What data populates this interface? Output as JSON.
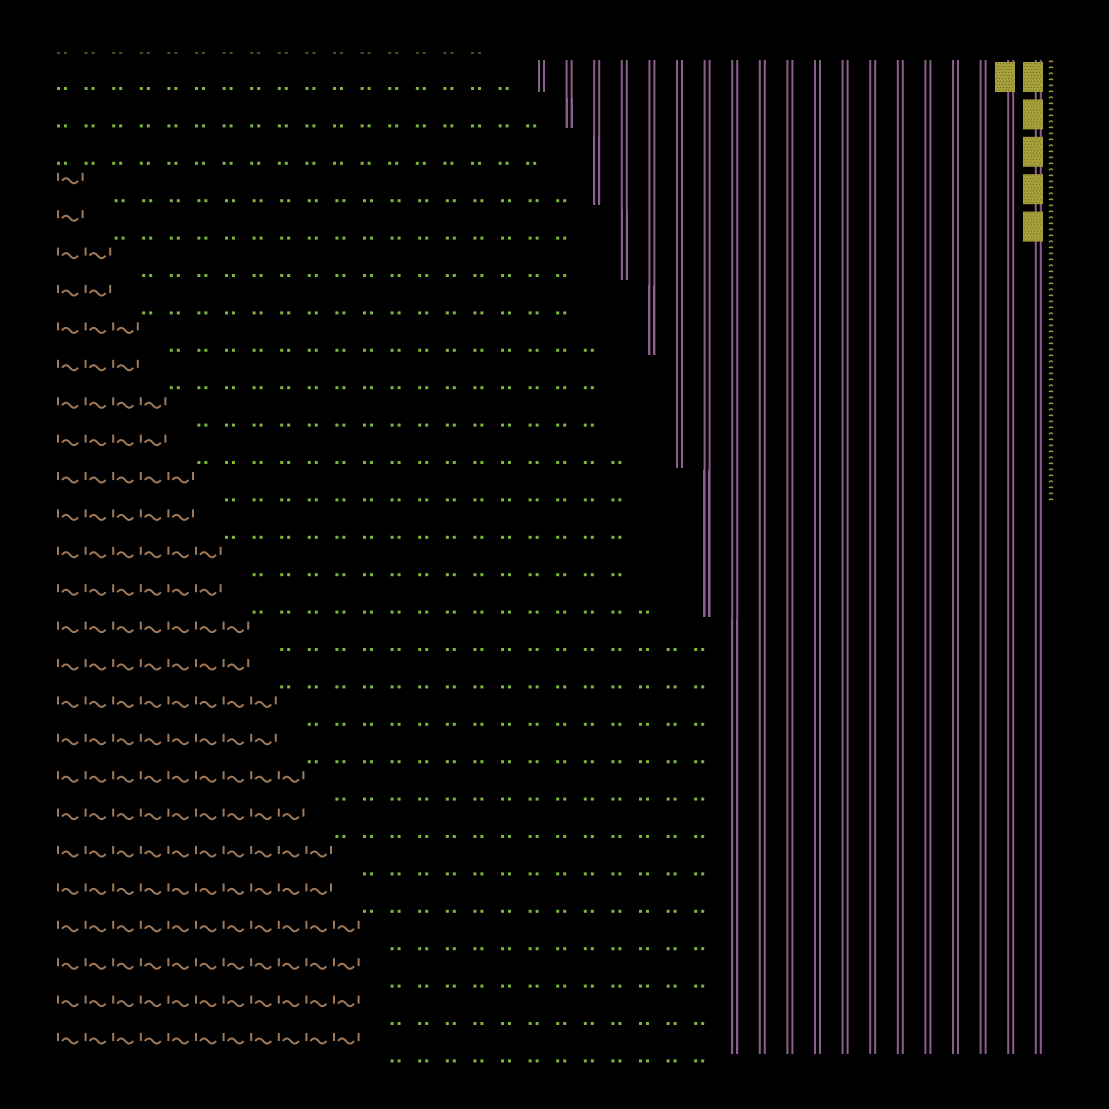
{
  "colors": {
    "background": "#000000",
    "dots": "#7db83a",
    "waves": "#a07a58",
    "bars": "#8a5f8c",
    "blocks": "#a6a03c",
    "blocks_dark": "#6f6a20"
  },
  "regions": {
    "dots": {
      "glyph": "··",
      "rows": 27
    },
    "waves": {
      "glyph": "'~'",
      "rows": 24
    },
    "bars": {
      "glyph": "||",
      "columns": 19
    },
    "blocks": {
      "glyph": "▓",
      "rows": 5
    }
  }
}
